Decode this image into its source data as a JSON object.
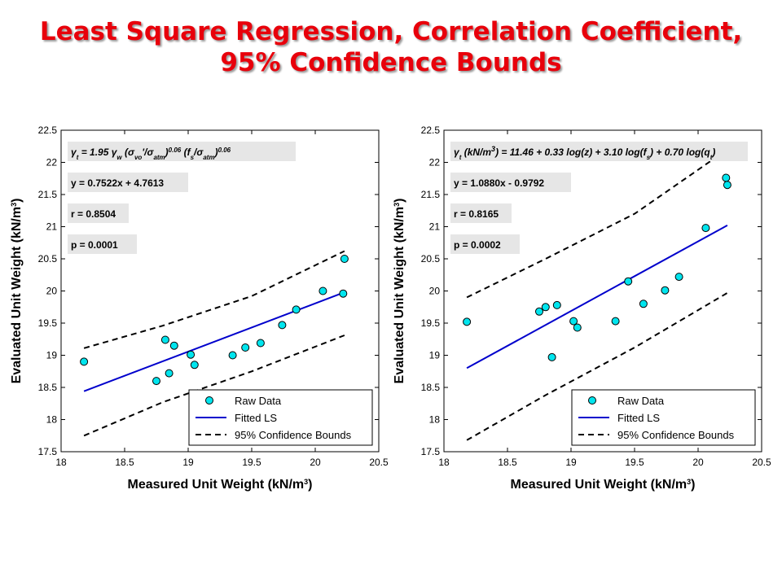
{
  "slide": {
    "title_line1": "Least Square Regression, Correlation Coefficient,",
    "title_line2": "95% Confidence Bounds"
  },
  "colors": {
    "title": "#e8000b",
    "marker": "#00e5ee",
    "fit_line": "#0000cc",
    "bounds": "#000000"
  },
  "chart_data": [
    {
      "type": "scatter",
      "xlabel": "Measured Unit Weight (kN/m³)",
      "ylabel": "Evaluated Unit Weight (kN/m³)",
      "xlim": [
        18,
        20.5
      ],
      "ylim": [
        17.5,
        22.5
      ],
      "xticks": [
        18,
        18.5,
        19,
        19.5,
        20,
        20.5
      ],
      "yticks": [
        17.5,
        18,
        18.5,
        19,
        19.5,
        20,
        20.5,
        21,
        21.5,
        22,
        22.5
      ],
      "grid": false,
      "legend_position": "bottom-right",
      "annotations": [
        "γt = 1.95 γw (σvo'/σatm)^0.06 (fs/σatm)^0.06",
        "y = 0.7522x + 4.7613",
        "r = 0.8504",
        "p = 0.0001"
      ],
      "series": [
        {
          "name": "Raw Data",
          "kind": "scatter",
          "points": [
            [
              18.18,
              18.9
            ],
            [
              18.75,
              18.6
            ],
            [
              18.82,
              19.24
            ],
            [
              18.85,
              18.72
            ],
            [
              18.89,
              19.15
            ],
            [
              19.02,
              19.01
            ],
            [
              19.05,
              18.85
            ],
            [
              19.35,
              19.0
            ],
            [
              19.45,
              19.12
            ],
            [
              19.57,
              19.19
            ],
            [
              19.74,
              19.47
            ],
            [
              19.85,
              19.71
            ],
            [
              20.06,
              20.0
            ],
            [
              20.22,
              19.96
            ],
            [
              20.23,
              20.5
            ]
          ]
        },
        {
          "name": "Fitted LS",
          "kind": "line",
          "points": [
            [
              18.18,
              18.44
            ],
            [
              20.23,
              19.98
            ]
          ]
        },
        {
          "name": "95% Confidence Bounds",
          "kind": "dashed",
          "lines": [
            [
              [
                18.18,
                19.11
              ],
              [
                18.8,
                19.46
              ],
              [
                19.5,
                19.92
              ],
              [
                20.23,
                20.62
              ]
            ],
            [
              [
                18.18,
                17.75
              ],
              [
                18.8,
                18.27
              ],
              [
                19.5,
                18.75
              ],
              [
                20.23,
                19.31
              ]
            ]
          ]
        }
      ]
    },
    {
      "type": "scatter",
      "xlabel": "Measured Unit Weight (kN/m³)",
      "ylabel": "Evaluated Unit Weight (kN/m³)",
      "xlim": [
        18,
        20.5
      ],
      "ylim": [
        17.5,
        22.5
      ],
      "xticks": [
        18,
        18.5,
        19,
        19.5,
        20,
        20.5
      ],
      "yticks": [
        17.5,
        18,
        18.5,
        19,
        19.5,
        20,
        20.5,
        21,
        21.5,
        22,
        22.5
      ],
      "grid": false,
      "legend_position": "bottom-right",
      "annotations": [
        "γt (kN/m³) = 11.46 + 0.33 log(z) + 3.10 log(fs) + 0.70 log(qt)",
        "y = 1.0880x - 0.9792",
        "r = 0.8165",
        "p = 0.0002"
      ],
      "series": [
        {
          "name": "Raw Data",
          "kind": "scatter",
          "points": [
            [
              18.18,
              19.52
            ],
            [
              18.75,
              19.68
            ],
            [
              18.8,
              19.75
            ],
            [
              18.85,
              18.97
            ],
            [
              18.89,
              19.78
            ],
            [
              19.02,
              19.53
            ],
            [
              19.05,
              19.43
            ],
            [
              19.35,
              19.53
            ],
            [
              19.45,
              20.15
            ],
            [
              19.57,
              19.8
            ],
            [
              19.74,
              20.01
            ],
            [
              19.85,
              20.22
            ],
            [
              20.06,
              20.98
            ],
            [
              20.22,
              21.76
            ],
            [
              20.23,
              21.65
            ]
          ]
        },
        {
          "name": "Fitted LS",
          "kind": "line",
          "points": [
            [
              18.18,
              18.8
            ],
            [
              20.23,
              21.02
            ]
          ]
        },
        {
          "name": "95% Confidence Bounds",
          "kind": "dashed",
          "lines": [
            [
              [
                18.18,
                19.9
              ],
              [
                18.8,
                20.5
              ],
              [
                19.5,
                21.2
              ],
              [
                20.23,
                22.2
              ]
            ],
            [
              [
                18.18,
                17.68
              ],
              [
                18.8,
                18.38
              ],
              [
                19.5,
                19.12
              ],
              [
                20.23,
                19.97
              ]
            ]
          ]
        }
      ]
    }
  ]
}
